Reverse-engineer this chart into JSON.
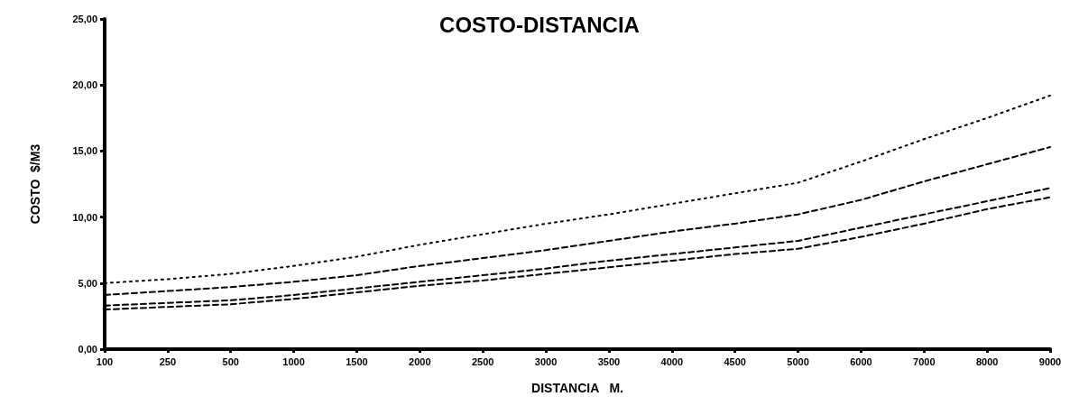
{
  "chart_data": {
    "type": "line",
    "title": "COSTO-DISTANCIA",
    "xlabel": "DISTANCIA   M.",
    "ylabel": "COSTO  $/M3",
    "categories": [
      "100",
      "250",
      "500",
      "1000",
      "1500",
      "2000",
      "2500",
      "3000",
      "3500",
      "4000",
      "4500",
      "5000",
      "6000",
      "7000",
      "8000",
      "9000"
    ],
    "ylim": [
      0,
      25
    ],
    "yticks": [
      {
        "value": 0,
        "label": "0,00"
      },
      {
        "value": 5,
        "label": "5,00"
      },
      {
        "value": 10,
        "label": "10,00"
      },
      {
        "value": 15,
        "label": "15,00"
      },
      {
        "value": 20,
        "label": "20,00"
      },
      {
        "value": 25,
        "label": "25,00"
      }
    ],
    "grid": false,
    "marker": "none",
    "series": [
      {
        "color": "#000000",
        "line_style": "dotted",
        "values": [
          5.0,
          5.3,
          5.7,
          6.3,
          7.0,
          7.9,
          8.7,
          9.5,
          10.2,
          11.0,
          11.8,
          12.6,
          14.2,
          15.9,
          17.5,
          19.2
        ]
      },
      {
        "color": "#000000",
        "line_style": "dashed",
        "values": [
          4.1,
          4.4,
          4.7,
          5.1,
          5.6,
          6.3,
          6.9,
          7.5,
          8.2,
          8.9,
          9.5,
          10.2,
          11.3,
          12.7,
          14.0,
          15.3
        ]
      },
      {
        "color": "#000000",
        "line_style": "dashed",
        "values": [
          3.3,
          3.5,
          3.7,
          4.1,
          4.6,
          5.1,
          5.6,
          6.1,
          6.7,
          7.2,
          7.7,
          8.2,
          9.2,
          10.2,
          11.2,
          12.2
        ]
      },
      {
        "color": "#000000",
        "line_style": "dashed",
        "values": [
          3.0,
          3.2,
          3.4,
          3.8,
          4.3,
          4.8,
          5.2,
          5.7,
          6.2,
          6.7,
          7.2,
          7.6,
          8.5,
          9.5,
          10.6,
          11.5
        ]
      }
    ]
  }
}
